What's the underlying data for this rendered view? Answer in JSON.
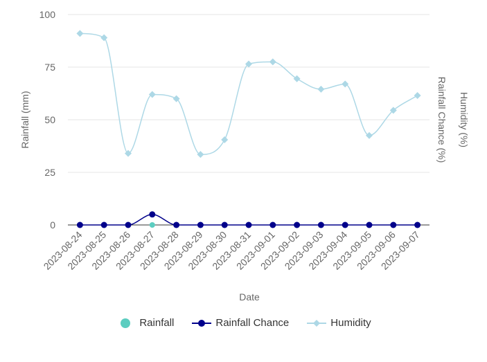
{
  "chart_data": {
    "type": "line",
    "x": [
      "2023-08-24",
      "2023-08-25",
      "2023-08-26",
      "2023-08-27",
      "2023-08-28",
      "2023-08-29",
      "2023-08-30",
      "2023-08-31",
      "2023-09-01",
      "2023-09-02",
      "2023-09-03",
      "2023-09-04",
      "2023-09-05",
      "2023-09-06",
      "2023-09-07"
    ],
    "xlabel": "Date",
    "ylabel_left": "Rainfall (mm)",
    "ylabel_right_outer": "Humidity (%)",
    "ylabel_right_inner": "Rainfall Chance (%)",
    "y_ticks": [
      "0",
      "25",
      "50",
      "75",
      "100"
    ],
    "ylim": [
      0,
      100
    ],
    "grid": true,
    "legend_position": "bottom",
    "series": [
      {
        "name": "Rainfall",
        "marker": "circle",
        "color": "#5ccdc0",
        "values": [
          0,
          0,
          0,
          0,
          0,
          0,
          0,
          0,
          0,
          0,
          0,
          0,
          0,
          0,
          0
        ]
      },
      {
        "name": "Rainfall Chance",
        "marker": "circle",
        "color": "#00008b",
        "values": [
          0,
          0,
          0,
          5,
          0,
          0,
          0,
          0,
          0,
          0,
          0,
          0,
          0,
          0,
          0
        ]
      },
      {
        "name": "Humidity",
        "marker": "diamond",
        "color": "#add8e6",
        "values": [
          91,
          89,
          34,
          62,
          60,
          33.5,
          40.5,
          76.5,
          77.5,
          69.5,
          64.5,
          67,
          42.5,
          54.5,
          61.5
        ]
      }
    ]
  }
}
